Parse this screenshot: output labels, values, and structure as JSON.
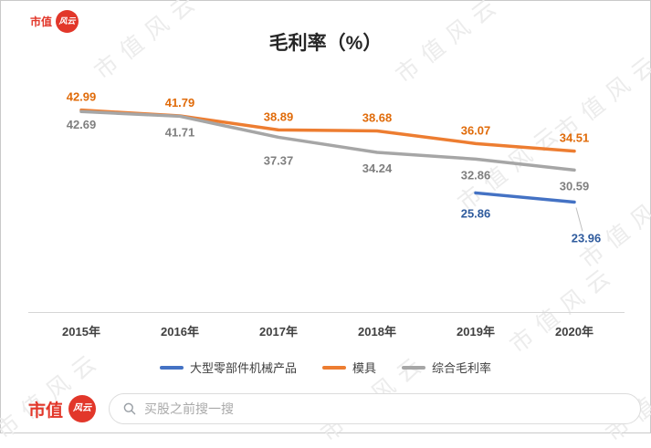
{
  "header": {
    "logo_text": "市值",
    "logo_seal": "风云"
  },
  "watermark": {
    "text": "市值风云"
  },
  "chart_data": {
    "type": "line",
    "title": "毛利率（%）",
    "categories": [
      "2015年",
      "2016年",
      "2017年",
      "2018年",
      "2019年",
      "2020年"
    ],
    "series": [
      {
        "name": "大型零部件机械产品",
        "color": "#4472C4",
        "label_color": "#2F5B9D",
        "label_side": "below",
        "values": [
          null,
          null,
          null,
          null,
          25.86,
          23.96
        ],
        "offsets": {
          "4": 27
        },
        "callouts": {
          "5": {
            "dx": 13,
            "dy": 44
          }
        }
      },
      {
        "name": "模具",
        "color": "#ED7D31",
        "label_color": "#E06B0A",
        "label_side": "above",
        "values": [
          42.99,
          41.79,
          38.89,
          38.68,
          36.07,
          34.51
        ]
      },
      {
        "name": "综合毛利率",
        "color": "#A6A6A6",
        "label_color": "#7F7F7F",
        "label_side": "below",
        "values": [
          42.69,
          41.71,
          37.37,
          34.24,
          32.86,
          30.59
        ],
        "offsets": {
          "0": 19,
          "2": 30
        }
      }
    ],
    "ylim": [
      20,
      46
    ],
    "grid": false,
    "legend_position": "bottom",
    "data_labels": true,
    "x_axis_line": true
  },
  "footer": {
    "brand_text": "市值",
    "brand_seal": "风云",
    "brand_color": "#E2372A",
    "search_placeholder": "买股之前搜一搜"
  }
}
